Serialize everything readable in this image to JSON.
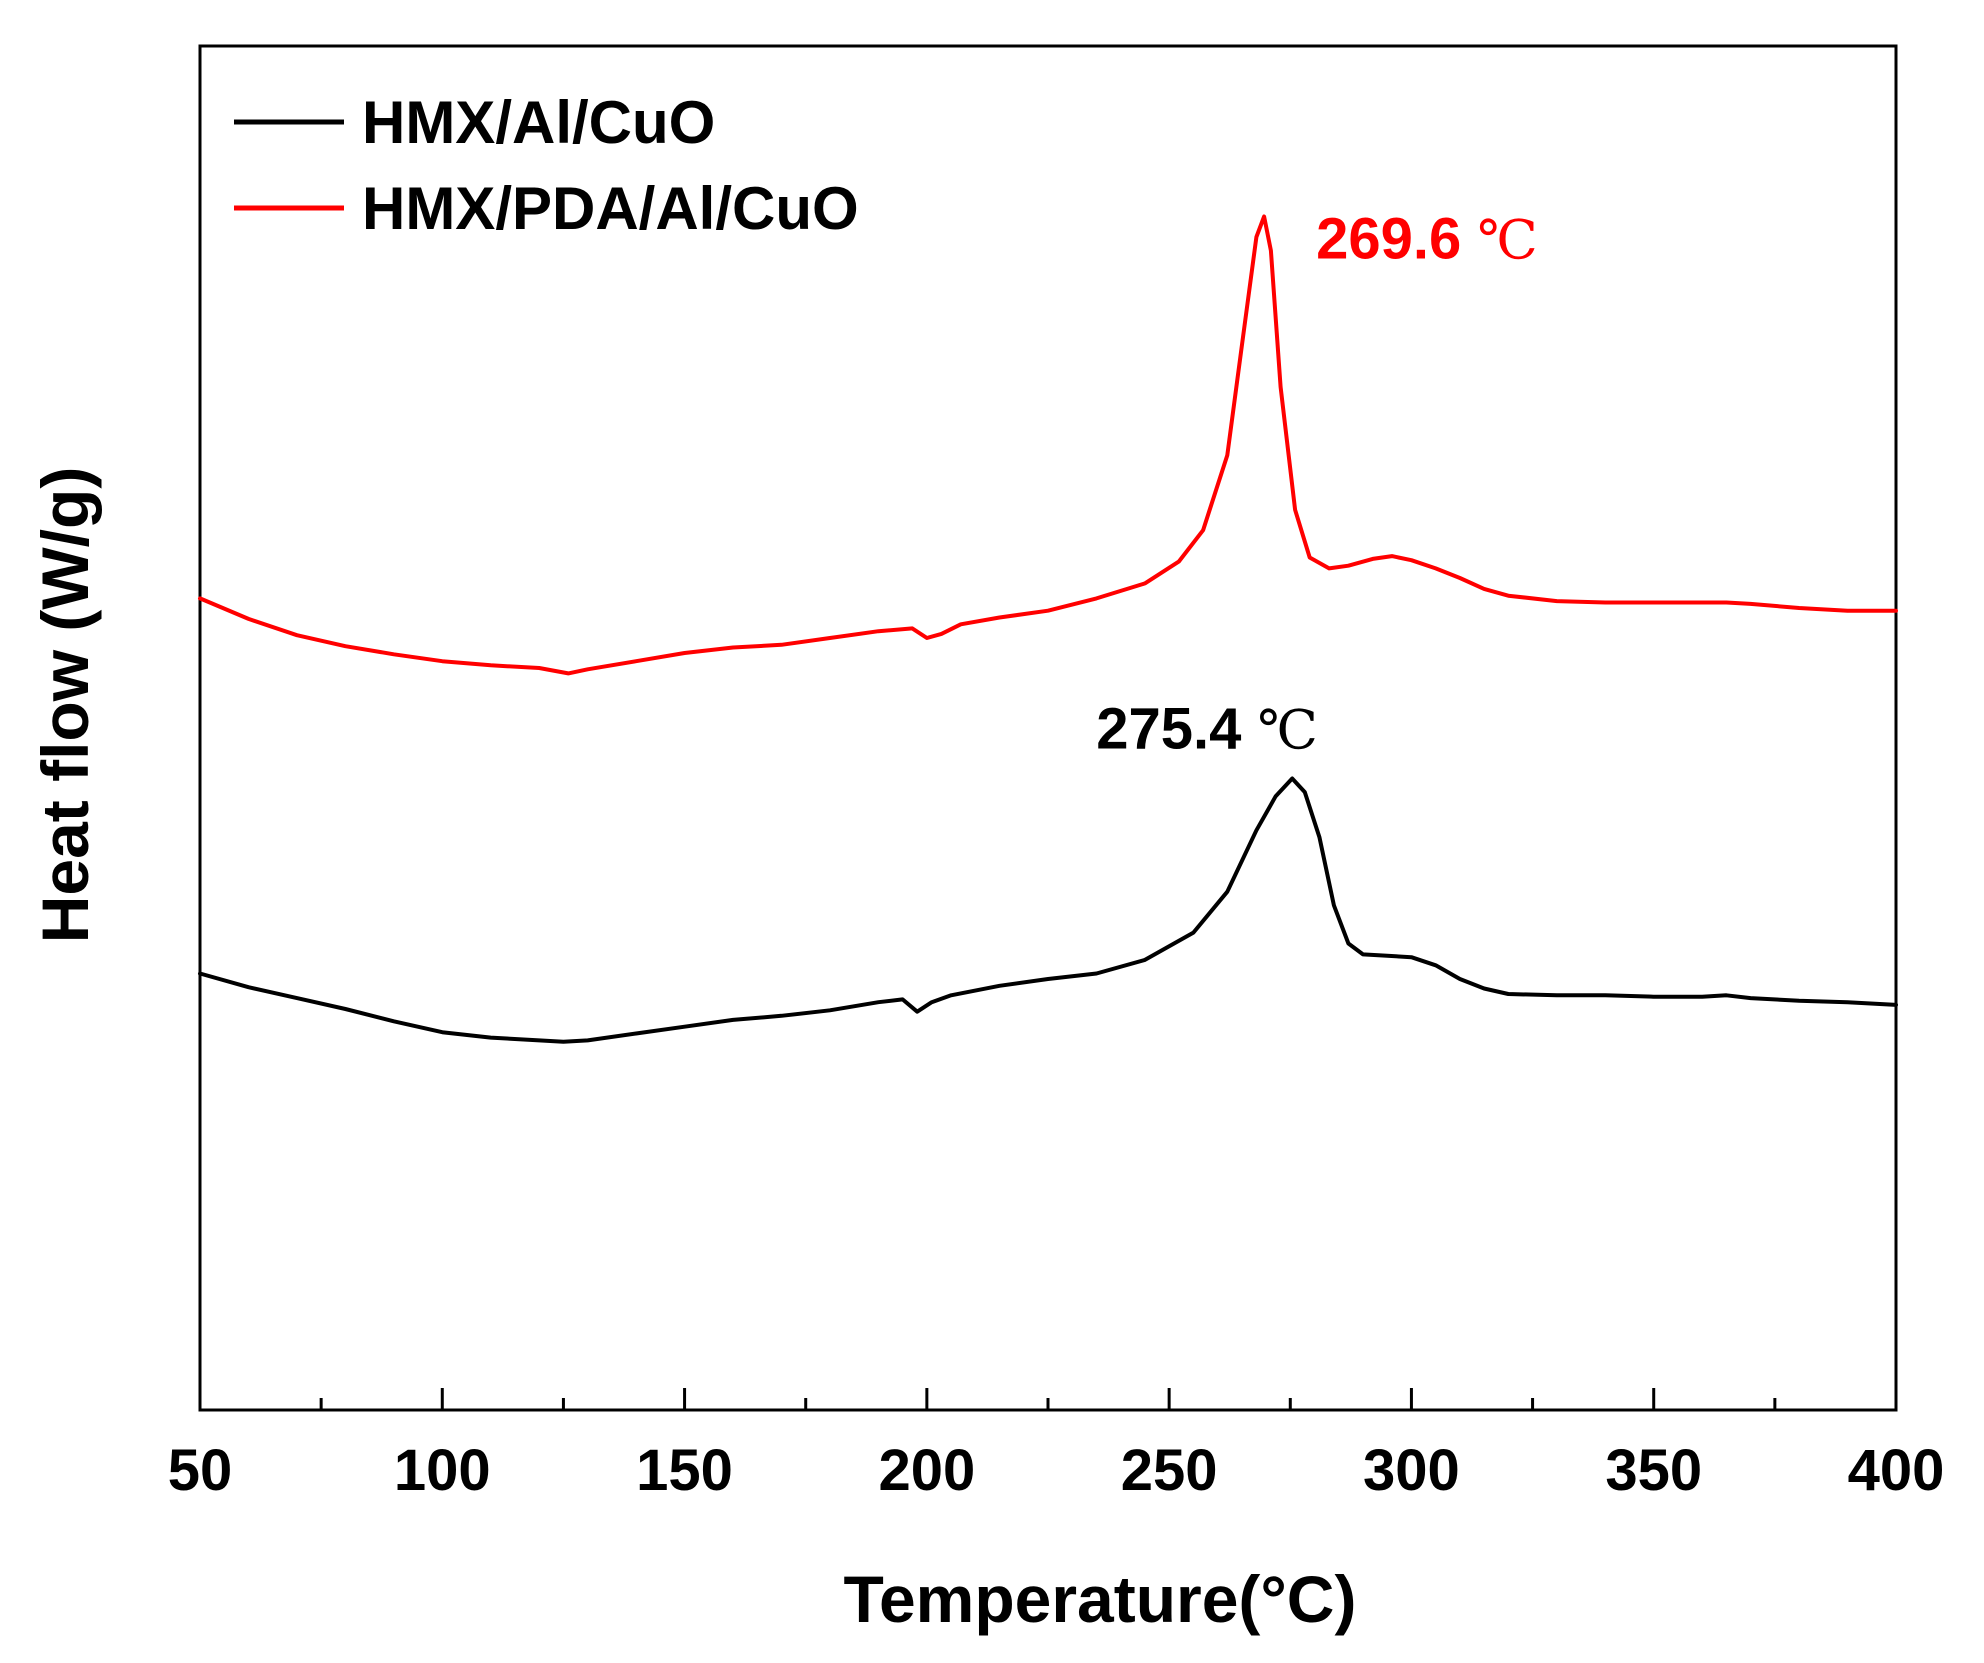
{
  "chart_data": {
    "type": "line",
    "title": "",
    "xlabel": "Temperature(°C)",
    "ylabel": "Heat flow (W/g)",
    "xlim": [
      50,
      400
    ],
    "ylim": [
      0,
      100
    ],
    "x_ticks": [
      50,
      100,
      150,
      200,
      250,
      300,
      350,
      400
    ],
    "y_ticks_shown": false,
    "legend_position": "top-left",
    "series": [
      {
        "name": "HMX/Al/CuO",
        "color": "#000000",
        "points": [
          [
            50,
            32
          ],
          [
            60,
            31
          ],
          [
            70,
            30.2
          ],
          [
            80,
            29.4
          ],
          [
            90,
            28.5
          ],
          [
            100,
            27.7
          ],
          [
            110,
            27.3
          ],
          [
            120,
            27.1
          ],
          [
            125,
            27.0
          ],
          [
            130,
            27.1
          ],
          [
            140,
            27.6
          ],
          [
            150,
            28.1
          ],
          [
            160,
            28.6
          ],
          [
            170,
            28.9
          ],
          [
            180,
            29.3
          ],
          [
            190,
            29.9
          ],
          [
            195,
            30.1
          ],
          [
            198,
            29.2
          ],
          [
            201,
            29.9
          ],
          [
            205,
            30.4
          ],
          [
            215,
            31.1
          ],
          [
            225,
            31.6
          ],
          [
            235,
            32.0
          ],
          [
            245,
            33.0
          ],
          [
            255,
            35.0
          ],
          [
            262,
            38.0
          ],
          [
            268,
            42.5
          ],
          [
            272,
            45.0
          ],
          [
            275.4,
            46.3
          ],
          [
            278,
            45.3
          ],
          [
            281,
            42.0
          ],
          [
            284,
            37.0
          ],
          [
            287,
            34.2
          ],
          [
            290,
            33.4
          ],
          [
            295,
            33.3
          ],
          [
            300,
            33.2
          ],
          [
            305,
            32.6
          ],
          [
            310,
            31.6
          ],
          [
            315,
            30.9
          ],
          [
            320,
            30.5
          ],
          [
            330,
            30.4
          ],
          [
            340,
            30.4
          ],
          [
            350,
            30.3
          ],
          [
            360,
            30.3
          ],
          [
            365,
            30.4
          ],
          [
            370,
            30.2
          ],
          [
            380,
            30.0
          ],
          [
            390,
            29.9
          ],
          [
            400,
            29.7
          ]
        ]
      },
      {
        "name": "HMX/PDA/Al/CuO",
        "color": "#ff0000",
        "points": [
          [
            50,
            59.5
          ],
          [
            60,
            58.0
          ],
          [
            70,
            56.8
          ],
          [
            80,
            56.0
          ],
          [
            90,
            55.4
          ],
          [
            100,
            54.9
          ],
          [
            110,
            54.6
          ],
          [
            120,
            54.4
          ],
          [
            126,
            54.0
          ],
          [
            130,
            54.3
          ],
          [
            140,
            54.9
          ],
          [
            150,
            55.5
          ],
          [
            160,
            55.9
          ],
          [
            170,
            56.1
          ],
          [
            180,
            56.6
          ],
          [
            190,
            57.1
          ],
          [
            197,
            57.3
          ],
          [
            200,
            56.6
          ],
          [
            203,
            56.9
          ],
          [
            207,
            57.6
          ],
          [
            215,
            58.1
          ],
          [
            225,
            58.6
          ],
          [
            235,
            59.5
          ],
          [
            245,
            60.6
          ],
          [
            252,
            62.2
          ],
          [
            257,
            64.5
          ],
          [
            262,
            70.0
          ],
          [
            265,
            78.0
          ],
          [
            268,
            86.0
          ],
          [
            269.6,
            87.5
          ],
          [
            271,
            85.0
          ],
          [
            273,
            75.0
          ],
          [
            276,
            66.0
          ],
          [
            279,
            62.5
          ],
          [
            283,
            61.7
          ],
          [
            287,
            61.9
          ],
          [
            292,
            62.4
          ],
          [
            296,
            62.6
          ],
          [
            300,
            62.3
          ],
          [
            305,
            61.7
          ],
          [
            310,
            61.0
          ],
          [
            315,
            60.2
          ],
          [
            320,
            59.7
          ],
          [
            330,
            59.3
          ],
          [
            340,
            59.2
          ],
          [
            350,
            59.2
          ],
          [
            360,
            59.2
          ],
          [
            365,
            59.2
          ],
          [
            370,
            59.1
          ],
          [
            380,
            58.8
          ],
          [
            390,
            58.6
          ],
          [
            400,
            58.6
          ]
        ]
      }
    ],
    "annotations": [
      {
        "label": "269.6",
        "unit": "℃",
        "x": 269.6,
        "y": 87.5,
        "color": "#ff0000",
        "series": "HMX/PDA/Al/CuO"
      },
      {
        "label": "275.4",
        "unit": "℃",
        "x": 275.4,
        "y": 46.3,
        "color": "#000000",
        "series": "HMX/Al/CuO"
      }
    ]
  }
}
